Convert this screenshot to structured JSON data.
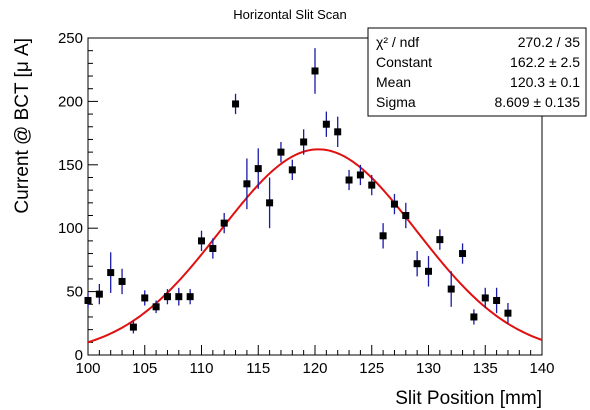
{
  "chart_data": {
    "type": "scatter",
    "title": "Horizontal Slit Scan",
    "xlabel": "Slit Position [mm]",
    "ylabel": "Current @ BCT [μ A]",
    "xlim": [
      100,
      140
    ],
    "ylim": [
      0,
      250
    ],
    "x_ticks": [
      100,
      105,
      110,
      115,
      120,
      125,
      130,
      135,
      140
    ],
    "y_ticks": [
      0,
      50,
      100,
      150,
      200,
      250
    ],
    "grid": false,
    "legend": "none",
    "marker_color": "#000000",
    "error_bar_color": "#1a1aa8",
    "fit_color": "#e01010",
    "points": [
      {
        "x": 100,
        "y": 43,
        "err": 6
      },
      {
        "x": 101,
        "y": 48,
        "err": 8
      },
      {
        "x": 102,
        "y": 65,
        "err": 16
      },
      {
        "x": 103,
        "y": 58,
        "err": 10
      },
      {
        "x": 104,
        "y": 22,
        "err": 5
      },
      {
        "x": 105,
        "y": 45,
        "err": 6
      },
      {
        "x": 106,
        "y": 38,
        "err": 5
      },
      {
        "x": 107,
        "y": 46,
        "err": 6
      },
      {
        "x": 108,
        "y": 46,
        "err": 7
      },
      {
        "x": 109,
        "y": 46,
        "err": 6
      },
      {
        "x": 110,
        "y": 90,
        "err": 8
      },
      {
        "x": 111,
        "y": 84,
        "err": 8
      },
      {
        "x": 112,
        "y": 104,
        "err": 8
      },
      {
        "x": 113,
        "y": 198,
        "err": 8
      },
      {
        "x": 114,
        "y": 135,
        "err": 20
      },
      {
        "x": 115,
        "y": 147,
        "err": 16
      },
      {
        "x": 116,
        "y": 120,
        "err": 20
      },
      {
        "x": 117,
        "y": 160,
        "err": 8
      },
      {
        "x": 118,
        "y": 146,
        "err": 8
      },
      {
        "x": 119,
        "y": 168,
        "err": 10
      },
      {
        "x": 120,
        "y": 224,
        "err": 18
      },
      {
        "x": 121,
        "y": 182,
        "err": 10
      },
      {
        "x": 122,
        "y": 176,
        "err": 12
      },
      {
        "x": 123,
        "y": 138,
        "err": 8
      },
      {
        "x": 124,
        "y": 142,
        "err": 8
      },
      {
        "x": 125,
        "y": 134,
        "err": 8
      },
      {
        "x": 126,
        "y": 94,
        "err": 10
      },
      {
        "x": 127,
        "y": 119,
        "err": 8
      },
      {
        "x": 128,
        "y": 110,
        "err": 10
      },
      {
        "x": 129,
        "y": 72,
        "err": 10
      },
      {
        "x": 130,
        "y": 66,
        "err": 12
      },
      {
        "x": 131,
        "y": 91,
        "err": 8
      },
      {
        "x": 132,
        "y": 52,
        "err": 14
      },
      {
        "x": 133,
        "y": 80,
        "err": 8
      },
      {
        "x": 134,
        "y": 30,
        "err": 6
      },
      {
        "x": 135,
        "y": 45,
        "err": 8
      },
      {
        "x": 136,
        "y": 43,
        "err": 10
      },
      {
        "x": 137,
        "y": 33,
        "err": 8
      }
    ],
    "fit": {
      "function": "gaussian",
      "constant": 162.2,
      "mean": 120.3,
      "sigma": 8.609
    },
    "stats_box": {
      "rows": [
        {
          "label": "χ² / ndf",
          "value": "270.2 / 35"
        },
        {
          "label": "Constant",
          "value": "162.2 ± 2.5"
        },
        {
          "label": "Mean",
          "value": "120.3 ± 0.1"
        },
        {
          "label": "Sigma",
          "value": "8.609 ± 0.135"
        }
      ]
    }
  }
}
